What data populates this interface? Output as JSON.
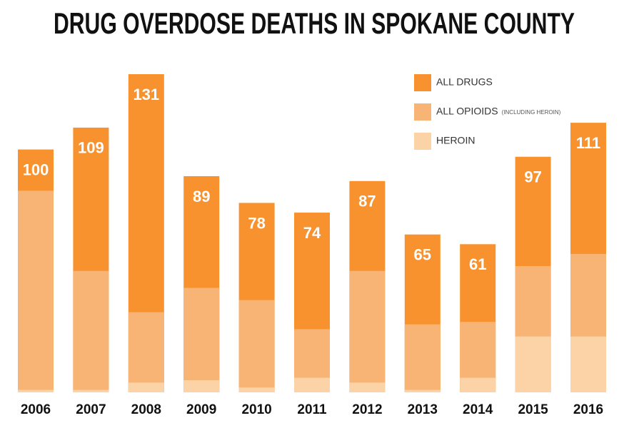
{
  "chart_data": {
    "type": "bar",
    "title": "DRUG OVERDOSE DEATHS IN SPOKANE COUNTY",
    "categories": [
      "2006",
      "2007",
      "2008",
      "2009",
      "2010",
      "2011",
      "2012",
      "2013",
      "2014",
      "2015",
      "2016"
    ],
    "series": [
      {
        "name": "ALL DRUGS",
        "color": "#f7922e",
        "values": [
          100,
          109,
          131,
          89,
          78,
          74,
          87,
          65,
          61,
          97,
          111
        ],
        "data_labels": true
      },
      {
        "name": "ALL OPIOIDS",
        "note": "(INCLUDING HEROIN)",
        "color": "#f8b475",
        "values": [
          83,
          50,
          33,
          43,
          38,
          26,
          50,
          28,
          29,
          52,
          57
        ],
        "data_labels": false
      },
      {
        "name": "HEROIN",
        "color": "#fbd3a6",
        "values": [
          1,
          1,
          4,
          5,
          2,
          6,
          4,
          1,
          6,
          23,
          23
        ],
        "data_labels": false
      }
    ],
    "bar_mode": "overlap",
    "legend": "top-right"
  }
}
